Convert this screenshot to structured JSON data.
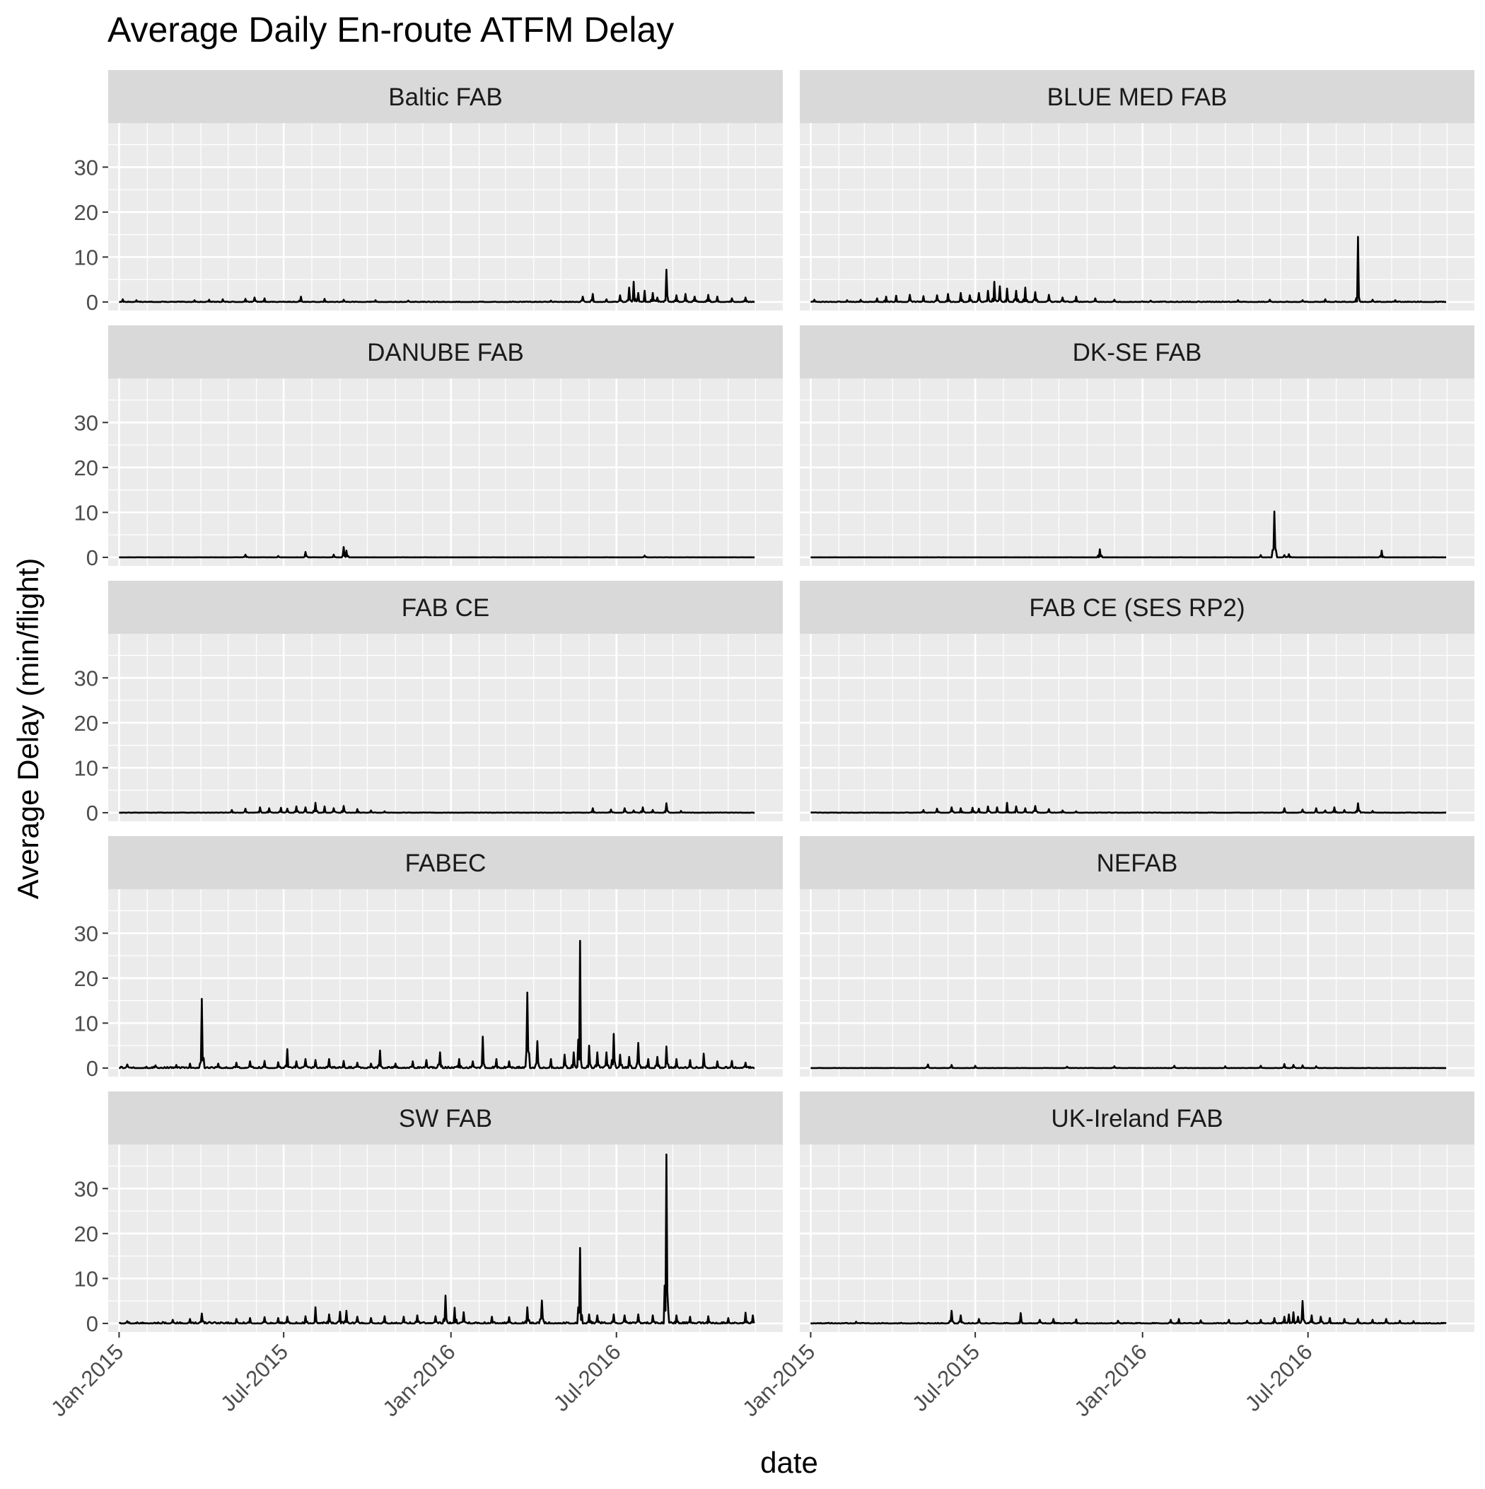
{
  "chart_data": {
    "type": "line",
    "title": "Average Daily En-route ATFM Delay",
    "xlabel": "date",
    "ylabel": "Average Delay (min/flight)",
    "layout": "faceted, 5 rows x 2 columns, shared axes",
    "grid": true,
    "colors": {
      "panel_bg": "#ebebeb",
      "grid_major": "#ffffff",
      "strip_bg": "#d9d9d9",
      "line": "#000000",
      "axis_text": "#4d4d4d"
    },
    "x_ticks": [
      "Jan-2015",
      "Jul-2015",
      "Jan-2016",
      "Jul-2016"
    ],
    "x_tick_dates": [
      "2015-01-01",
      "2015-07-01",
      "2016-01-01",
      "2016-07-01"
    ],
    "xlim": [
      "2014-12-20",
      "2016-12-31"
    ],
    "x_range_data": [
      "2015-01-01",
      "2016-11-30"
    ],
    "y_ticks": [
      0,
      10,
      20,
      30
    ],
    "ylim": [
      -1.9,
      39.8
    ],
    "panels": [
      {
        "name": "Baltic FAB",
        "spikes": [
          [
            "2015-01-05",
            0.6
          ],
          [
            "2015-01-20",
            0.4
          ],
          [
            "2015-03-25",
            0.4
          ],
          [
            "2015-04-10",
            0.5
          ],
          [
            "2015-04-25",
            0.6
          ],
          [
            "2015-05-20",
            0.7
          ],
          [
            "2015-05-30",
            1.0
          ],
          [
            "2015-06-10",
            0.8
          ],
          [
            "2015-07-20",
            1.2
          ],
          [
            "2015-08-15",
            0.7
          ],
          [
            "2015-09-05",
            0.5
          ],
          [
            "2015-10-10",
            0.4
          ],
          [
            "2015-11-15",
            0.3
          ],
          [
            "2016-04-20",
            0.3
          ],
          [
            "2016-05-25",
            1.2
          ],
          [
            "2016-06-05",
            1.8
          ],
          [
            "2016-06-20",
            0.6
          ],
          [
            "2016-07-05",
            1.5
          ],
          [
            "2016-07-15",
            3.2
          ],
          [
            "2016-07-20",
            4.5
          ],
          [
            "2016-07-25",
            2.0
          ],
          [
            "2016-08-01",
            2.5
          ],
          [
            "2016-08-10",
            2.0
          ],
          [
            "2016-08-15",
            1.0
          ],
          [
            "2016-08-25",
            7.2
          ],
          [
            "2016-09-05",
            1.5
          ],
          [
            "2016-09-15",
            1.8
          ],
          [
            "2016-09-25",
            1.2
          ],
          [
            "2016-10-10",
            1.6
          ],
          [
            "2016-10-20",
            1.2
          ],
          [
            "2016-11-05",
            0.8
          ],
          [
            "2016-11-20",
            1.0
          ]
        ],
        "noise": 0.12
      },
      {
        "name": "BLUE MED FAB",
        "spikes": [
          [
            "2015-01-05",
            0.5
          ],
          [
            "2015-02-10",
            0.4
          ],
          [
            "2015-02-25",
            0.5
          ],
          [
            "2015-03-15",
            0.8
          ],
          [
            "2015-03-25",
            1.2
          ],
          [
            "2015-04-05",
            1.4
          ],
          [
            "2015-04-20",
            1.6
          ],
          [
            "2015-05-05",
            1.3
          ],
          [
            "2015-05-20",
            1.5
          ],
          [
            "2015-06-01",
            1.8
          ],
          [
            "2015-06-15",
            2.0
          ],
          [
            "2015-06-25",
            1.5
          ],
          [
            "2015-07-05",
            2.0
          ],
          [
            "2015-07-15",
            2.5
          ],
          [
            "2015-07-22",
            4.5
          ],
          [
            "2015-07-28",
            3.5
          ],
          [
            "2015-08-05",
            3.0
          ],
          [
            "2015-08-15",
            2.5
          ],
          [
            "2015-08-25",
            3.2
          ],
          [
            "2015-09-05",
            2.2
          ],
          [
            "2015-09-20",
            1.6
          ],
          [
            "2015-10-05",
            1.0
          ],
          [
            "2015-10-20",
            1.2
          ],
          [
            "2015-11-10",
            0.8
          ],
          [
            "2015-12-01",
            0.5
          ],
          [
            "2016-01-10",
            0.3
          ],
          [
            "2016-04-15",
            0.4
          ],
          [
            "2016-05-20",
            0.5
          ],
          [
            "2016-06-25",
            0.4
          ],
          [
            "2016-07-20",
            0.6
          ],
          [
            "2016-08-25",
            14.5
          ],
          [
            "2016-09-10",
            0.5
          ],
          [
            "2016-10-05",
            0.4
          ]
        ],
        "noise": 0.15
      },
      {
        "name": "DANUBE FAB",
        "spikes": [
          [
            "2015-05-20",
            0.6
          ],
          [
            "2015-06-25",
            0.3
          ],
          [
            "2015-07-25",
            1.2
          ],
          [
            "2015-08-25",
            0.6
          ],
          [
            "2015-09-05",
            2.3
          ],
          [
            "2015-09-08",
            1.5
          ],
          [
            "2016-08-01",
            0.4
          ]
        ],
        "noise": 0.03
      },
      {
        "name": "DK-SE FAB",
        "spikes": [
          [
            "2015-11-15",
            1.8
          ],
          [
            "2016-05-10",
            0.5
          ],
          [
            "2016-05-25",
            10.2
          ],
          [
            "2016-06-05",
            0.5
          ],
          [
            "2016-06-10",
            0.7
          ],
          [
            "2016-09-20",
            1.5
          ]
        ],
        "noise": 0.02
      },
      {
        "name": "FAB CE",
        "spikes": [
          [
            "2015-05-05",
            0.6
          ],
          [
            "2015-05-20",
            0.9
          ],
          [
            "2015-06-05",
            1.2
          ],
          [
            "2015-06-15",
            1.0
          ],
          [
            "2015-06-28",
            1.1
          ],
          [
            "2015-07-05",
            0.9
          ],
          [
            "2015-07-15",
            1.4
          ],
          [
            "2015-07-25",
            1.2
          ],
          [
            "2015-08-05",
            2.2
          ],
          [
            "2015-08-15",
            1.4
          ],
          [
            "2015-08-25",
            1.0
          ],
          [
            "2015-09-05",
            1.5
          ],
          [
            "2015-09-20",
            0.8
          ],
          [
            "2015-10-05",
            0.5
          ],
          [
            "2015-10-20",
            0.3
          ],
          [
            "2016-06-05",
            1.0
          ],
          [
            "2016-06-25",
            0.7
          ],
          [
            "2016-07-10",
            1.0
          ],
          [
            "2016-07-20",
            0.5
          ],
          [
            "2016-07-30",
            1.2
          ],
          [
            "2016-08-10",
            0.6
          ],
          [
            "2016-08-25",
            2.1
          ],
          [
            "2016-09-10",
            0.4
          ]
        ],
        "noise": 0.08
      },
      {
        "name": "FAB CE (SES RP2)",
        "spikes": [
          [
            "2015-05-05",
            0.6
          ],
          [
            "2015-05-20",
            0.9
          ],
          [
            "2015-06-05",
            1.2
          ],
          [
            "2015-06-15",
            1.0
          ],
          [
            "2015-06-28",
            1.1
          ],
          [
            "2015-07-05",
            0.9
          ],
          [
            "2015-07-15",
            1.4
          ],
          [
            "2015-07-25",
            1.2
          ],
          [
            "2015-08-05",
            2.2
          ],
          [
            "2015-08-15",
            1.4
          ],
          [
            "2015-08-25",
            1.0
          ],
          [
            "2015-09-05",
            1.5
          ],
          [
            "2015-09-20",
            0.8
          ],
          [
            "2015-10-05",
            0.5
          ],
          [
            "2015-10-20",
            0.3
          ],
          [
            "2016-06-05",
            1.0
          ],
          [
            "2016-06-25",
            0.7
          ],
          [
            "2016-07-10",
            1.0
          ],
          [
            "2016-07-20",
            0.5
          ],
          [
            "2016-07-30",
            1.2
          ],
          [
            "2016-08-10",
            0.6
          ],
          [
            "2016-08-25",
            2.1
          ],
          [
            "2016-09-10",
            0.4
          ]
        ],
        "noise": 0.08
      },
      {
        "name": "FABEC",
        "spikes": [
          [
            "2015-01-10",
            0.8
          ],
          [
            "2015-02-10",
            0.6
          ],
          [
            "2015-03-05",
            0.7
          ],
          [
            "2015-03-20",
            1.0
          ],
          [
            "2015-04-02",
            15.4
          ],
          [
            "2015-04-20",
            1.0
          ],
          [
            "2015-05-10",
            1.2
          ],
          [
            "2015-05-25",
            1.5
          ],
          [
            "2015-06-10",
            1.6
          ],
          [
            "2015-06-25",
            1.3
          ],
          [
            "2015-07-05",
            4.2
          ],
          [
            "2015-07-15",
            1.5
          ],
          [
            "2015-07-25",
            2.0
          ],
          [
            "2015-08-05",
            1.8
          ],
          [
            "2015-08-20",
            2.0
          ],
          [
            "2015-09-05",
            1.6
          ],
          [
            "2015-09-20",
            1.2
          ],
          [
            "2015-10-05",
            1.0
          ],
          [
            "2015-10-15",
            3.9
          ],
          [
            "2015-11-01",
            1.0
          ],
          [
            "2015-11-20",
            1.5
          ],
          [
            "2015-12-05",
            1.8
          ],
          [
            "2015-12-20",
            3.5
          ],
          [
            "2016-01-10",
            2.0
          ],
          [
            "2016-01-25",
            1.5
          ],
          [
            "2016-02-05",
            7.0
          ],
          [
            "2016-02-20",
            2.0
          ],
          [
            "2016-03-05",
            1.5
          ],
          [
            "2016-03-25",
            16.8
          ],
          [
            "2016-04-05",
            6.0
          ],
          [
            "2016-04-20",
            2.0
          ],
          [
            "2016-05-05",
            3.0
          ],
          [
            "2016-05-15",
            3.5
          ],
          [
            "2016-05-22",
            28.3
          ],
          [
            "2016-06-01",
            5.0
          ],
          [
            "2016-06-10",
            3.5
          ],
          [
            "2016-06-20",
            3.5
          ],
          [
            "2016-06-28",
            7.6
          ],
          [
            "2016-07-05",
            3.0
          ],
          [
            "2016-07-15",
            2.5
          ],
          [
            "2016-07-25",
            5.6
          ],
          [
            "2016-08-05",
            2.0
          ],
          [
            "2016-08-15",
            2.5
          ],
          [
            "2016-08-25",
            4.8
          ],
          [
            "2016-09-05",
            2.0
          ],
          [
            "2016-09-20",
            1.8
          ],
          [
            "2016-10-05",
            3.2
          ],
          [
            "2016-10-20",
            1.5
          ],
          [
            "2016-11-05",
            1.6
          ],
          [
            "2016-11-20",
            1.2
          ]
        ],
        "noise": 0.35
      },
      {
        "name": "NEFAB",
        "spikes": [
          [
            "2015-05-10",
            0.8
          ],
          [
            "2015-06-05",
            0.7
          ],
          [
            "2015-07-01",
            0.5
          ],
          [
            "2015-10-10",
            0.3
          ],
          [
            "2015-12-01",
            0.4
          ],
          [
            "2016-02-05",
            0.5
          ],
          [
            "2016-04-01",
            0.4
          ],
          [
            "2016-05-10",
            0.5
          ],
          [
            "2016-06-05",
            0.9
          ],
          [
            "2016-06-15",
            0.7
          ],
          [
            "2016-06-25",
            0.6
          ],
          [
            "2016-07-10",
            0.4
          ]
        ],
        "noise": 0.05
      },
      {
        "name": "SW FAB",
        "spikes": [
          [
            "2015-01-10",
            0.5
          ],
          [
            "2015-03-01",
            0.8
          ],
          [
            "2015-03-20",
            1.0
          ],
          [
            "2015-04-02",
            2.2
          ],
          [
            "2015-05-10",
            1.0
          ],
          [
            "2015-05-25",
            1.2
          ],
          [
            "2015-06-10",
            1.4
          ],
          [
            "2015-06-25",
            1.2
          ],
          [
            "2015-07-05",
            1.5
          ],
          [
            "2015-07-25",
            1.6
          ],
          [
            "2015-08-05",
            3.6
          ],
          [
            "2015-08-20",
            2.0
          ],
          [
            "2015-09-01",
            2.6
          ],
          [
            "2015-09-08",
            2.8
          ],
          [
            "2015-09-20",
            1.5
          ],
          [
            "2015-10-05",
            1.2
          ],
          [
            "2015-10-20",
            1.6
          ],
          [
            "2015-11-10",
            1.5
          ],
          [
            "2015-11-25",
            1.8
          ],
          [
            "2015-12-15",
            1.6
          ],
          [
            "2015-12-26",
            6.2
          ],
          [
            "2016-01-05",
            3.5
          ],
          [
            "2016-01-15",
            2.5
          ],
          [
            "2016-02-15",
            1.5
          ],
          [
            "2016-03-05",
            1.4
          ],
          [
            "2016-03-25",
            3.6
          ],
          [
            "2016-04-10",
            5.1
          ],
          [
            "2016-05-22",
            16.8
          ],
          [
            "2016-06-01",
            2.0
          ],
          [
            "2016-06-10",
            1.8
          ],
          [
            "2016-06-28",
            2.0
          ],
          [
            "2016-07-10",
            1.8
          ],
          [
            "2016-07-25",
            2.0
          ],
          [
            "2016-08-10",
            1.8
          ],
          [
            "2016-08-25",
            37.6
          ],
          [
            "2016-09-05",
            1.8
          ],
          [
            "2016-09-20",
            1.5
          ],
          [
            "2016-10-10",
            1.6
          ],
          [
            "2016-11-01",
            1.2
          ],
          [
            "2016-11-20",
            2.4
          ],
          [
            "2016-11-28",
            1.8
          ]
        ],
        "noise": 0.35
      },
      {
        "name": "UK-Ireland FAB",
        "spikes": [
          [
            "2015-02-20",
            0.4
          ],
          [
            "2015-06-05",
            2.8
          ],
          [
            "2015-06-15",
            1.8
          ],
          [
            "2015-07-05",
            1.0
          ],
          [
            "2015-08-20",
            2.3
          ],
          [
            "2015-09-10",
            0.8
          ],
          [
            "2015-09-25",
            1.0
          ],
          [
            "2015-10-20",
            0.9
          ],
          [
            "2015-12-05",
            0.6
          ],
          [
            "2016-02-01",
            0.8
          ],
          [
            "2016-02-10",
            1.0
          ],
          [
            "2016-03-05",
            0.7
          ],
          [
            "2016-04-05",
            0.8
          ],
          [
            "2016-04-25",
            0.6
          ],
          [
            "2016-05-10",
            0.8
          ],
          [
            "2016-05-25",
            1.2
          ],
          [
            "2016-06-05",
            1.5
          ],
          [
            "2016-06-10",
            2.0
          ],
          [
            "2016-06-15",
            2.5
          ],
          [
            "2016-06-20",
            1.5
          ],
          [
            "2016-06-25",
            5.0
          ],
          [
            "2016-07-05",
            1.8
          ],
          [
            "2016-07-15",
            1.5
          ],
          [
            "2016-07-25",
            1.2
          ],
          [
            "2016-08-10",
            1.0
          ],
          [
            "2016-08-25",
            1.0
          ],
          [
            "2016-09-10",
            0.8
          ],
          [
            "2016-09-25",
            1.0
          ],
          [
            "2016-10-10",
            0.6
          ],
          [
            "2016-10-25",
            0.5
          ]
        ],
        "noise": 0.15
      }
    ]
  }
}
